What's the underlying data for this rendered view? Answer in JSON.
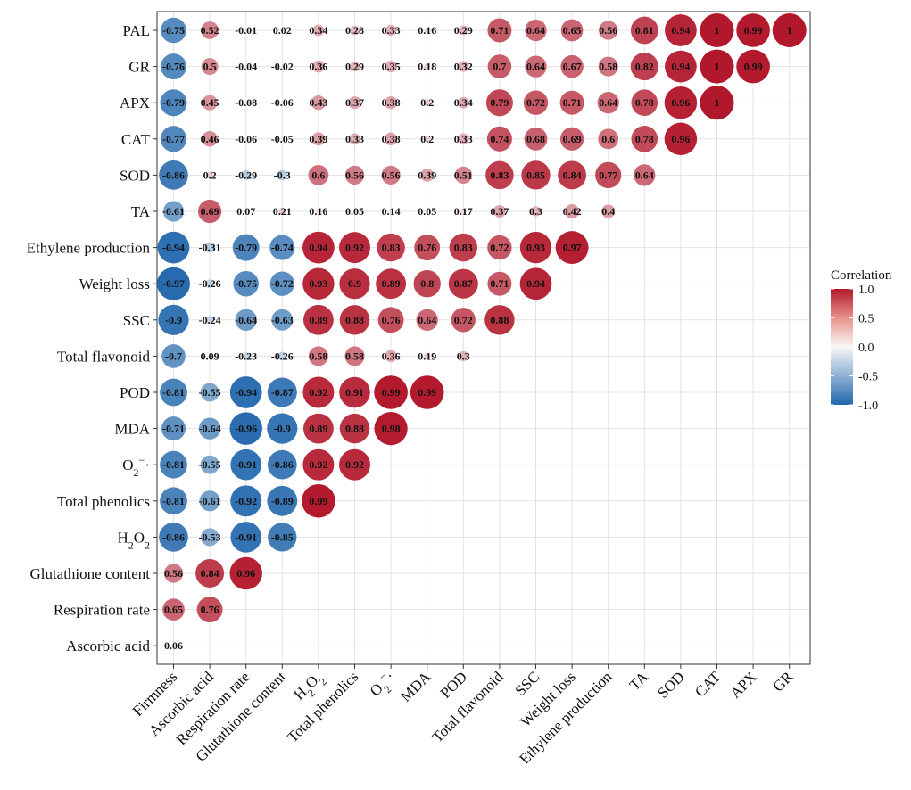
{
  "chart_data": {
    "type": "heatmap",
    "title": "",
    "legend": {
      "title": "Correlation",
      "ticks": [
        "1.0",
        "0.5",
        "0.0",
        "-0.5",
        "-1.0"
      ],
      "range": [
        -1,
        1
      ],
      "position": "right"
    },
    "columns": [
      "Firmness",
      "Ascorbic acid",
      "Respiration rate",
      "Glutathione content",
      "H2O2",
      "Total phenolics",
      "O2−·",
      "MDA",
      "POD",
      "Total flavonoid",
      "SSC",
      "Weight loss",
      "Ethylene production",
      "TA",
      "SOD",
      "CAT",
      "APX",
      "GR"
    ],
    "rows": [
      {
        "label": "PAL",
        "values": [
          -0.75,
          0.52,
          -0.01,
          0.02,
          0.34,
          0.28,
          0.33,
          0.16,
          0.29,
          0.71,
          0.64,
          0.65,
          0.56,
          0.81,
          0.94,
          1,
          0.99,
          1
        ]
      },
      {
        "label": "GR",
        "values": [
          -0.76,
          0.5,
          -0.04,
          -0.02,
          0.36,
          0.29,
          0.35,
          0.18,
          0.32,
          0.7,
          0.64,
          0.67,
          0.58,
          0.82,
          0.94,
          1,
          0.99
        ]
      },
      {
        "label": "APX",
        "values": [
          -0.79,
          0.45,
          -0.08,
          -0.06,
          0.43,
          0.37,
          0.38,
          0.2,
          0.34,
          0.79,
          0.72,
          0.71,
          0.64,
          0.78,
          0.96,
          1
        ]
      },
      {
        "label": "CAT",
        "values": [
          -0.77,
          0.46,
          -0.06,
          -0.05,
          0.39,
          0.33,
          0.38,
          0.2,
          0.33,
          0.74,
          0.68,
          0.69,
          0.6,
          0.78,
          0.96
        ]
      },
      {
        "label": "SOD",
        "values": [
          -0.86,
          0.2,
          -0.29,
          -0.3,
          0.6,
          0.56,
          0.56,
          0.39,
          0.51,
          0.83,
          0.85,
          0.84,
          0.77,
          0.64
        ]
      },
      {
        "label": "TA",
        "values": [
          -0.61,
          0.69,
          0.07,
          0.21,
          0.16,
          0.05,
          0.14,
          0.05,
          0.17,
          0.37,
          0.3,
          0.42,
          0.4
        ]
      },
      {
        "label": "Ethylene production",
        "values": [
          -0.94,
          -0.31,
          -0.79,
          -0.74,
          0.94,
          0.92,
          0.83,
          0.76,
          0.83,
          0.72,
          0.93,
          0.97
        ]
      },
      {
        "label": "Weight loss",
        "values": [
          -0.97,
          -0.26,
          -0.75,
          -0.72,
          0.93,
          0.9,
          0.89,
          0.8,
          0.87,
          0.71,
          0.94
        ]
      },
      {
        "label": "SSC",
        "values": [
          -0.9,
          -0.24,
          -0.64,
          -0.63,
          0.89,
          0.88,
          0.76,
          0.64,
          0.72,
          0.88
        ]
      },
      {
        "label": "Total flavonoid",
        "values": [
          -0.7,
          0.09,
          -0.23,
          -0.26,
          0.58,
          0.58,
          0.36,
          0.19,
          0.3
        ]
      },
      {
        "label": "POD",
        "values": [
          -0.81,
          -0.55,
          -0.94,
          -0.87,
          0.92,
          0.91,
          0.99,
          0.99
        ]
      },
      {
        "label": "MDA",
        "values": [
          -0.71,
          -0.64,
          -0.96,
          -0.9,
          0.89,
          0.88,
          0.98
        ]
      },
      {
        "label": "O2−·",
        "values": [
          -0.81,
          -0.55,
          -0.91,
          -0.86,
          0.92,
          0.92
        ]
      },
      {
        "label": "Total phenolics",
        "values": [
          -0.81,
          -0.61,
          -0.92,
          -0.89,
          0.99
        ]
      },
      {
        "label": "H2O2",
        "values": [
          -0.86,
          -0.53,
          -0.91,
          -0.85
        ]
      },
      {
        "label": "Glutathione content",
        "values": [
          0.56,
          0.84,
          0.96
        ]
      },
      {
        "label": "Respiration rate",
        "values": [
          0.65,
          0.76
        ]
      },
      {
        "label": "Ascorbic acid",
        "values": [
          0.06
        ]
      }
    ]
  }
}
